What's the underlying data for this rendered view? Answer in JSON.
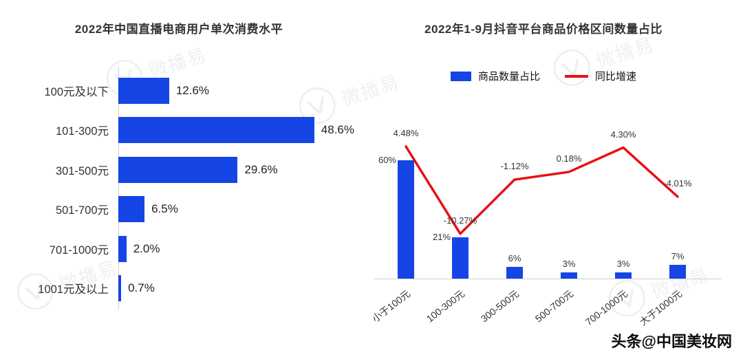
{
  "watermark": {
    "text": "微播易"
  },
  "footer": {
    "attribution": "头条@中国美妆网"
  },
  "chart_data": [
    {
      "type": "bar",
      "orientation": "horizontal",
      "title": "2022年中国直播电商用户单次消费水平",
      "categories": [
        "100元及以下",
        "101-300元",
        "301-500元",
        "501-700元",
        "701-1000元",
        "1001元及以上"
      ],
      "values": [
        12.6,
        48.6,
        29.6,
        6.5,
        2.0,
        0.7
      ],
      "value_labels": [
        "12.6%",
        "48.6%",
        "29.6%",
        "6.5%",
        "2.0%",
        "0.7%"
      ],
      "xlim": [
        0,
        50
      ],
      "bar_color": "#1545e4",
      "grid": false
    },
    {
      "type": "combo",
      "title": "2022年1-9月抖音平台商品价格区间数量占比",
      "categories": [
        "小于100元",
        "100-300元",
        "300-500元",
        "500-700元",
        "700-1000元",
        "大于1000元"
      ],
      "legend_position": "top",
      "series": [
        {
          "name": "商品数量占比",
          "type": "bar",
          "values": [
            60,
            21,
            6,
            3,
            3,
            7
          ],
          "labels": [
            "60%",
            "21%",
            "6%",
            "3%",
            "3%",
            "7%"
          ],
          "color": "#1545e4"
        },
        {
          "name": "同比增速",
          "type": "line",
          "values": [
            4.48,
            -10.27,
            -1.12,
            0.18,
            4.3,
            -4.01
          ],
          "labels": [
            "4.48%",
            "-10.27%",
            "-1.12%",
            "0.18%",
            "4.30%",
            "-4.01%"
          ],
          "color": "#e81016"
        }
      ]
    }
  ]
}
